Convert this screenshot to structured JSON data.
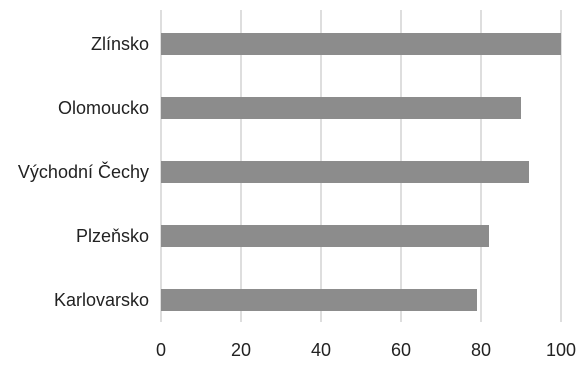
{
  "chart_data": {
    "type": "bar",
    "orientation": "horizontal",
    "categories": [
      "Zlínsko",
      "Olomoucko",
      "Východní Čechy",
      "Plzeňsko",
      "Karlovarsko"
    ],
    "values": [
      100,
      90,
      92,
      82,
      79
    ],
    "title": "",
    "xlabel": "",
    "ylabel": "",
    "xlim": [
      0,
      100
    ],
    "xticks": [
      "0",
      "20",
      "40",
      "60",
      "80",
      "100"
    ],
    "grid": true,
    "grid_axis": "x",
    "legend": "none",
    "colors": {
      "bar": "#8c8c8c",
      "grid": "#d3d3d3",
      "text": "#222222"
    }
  }
}
